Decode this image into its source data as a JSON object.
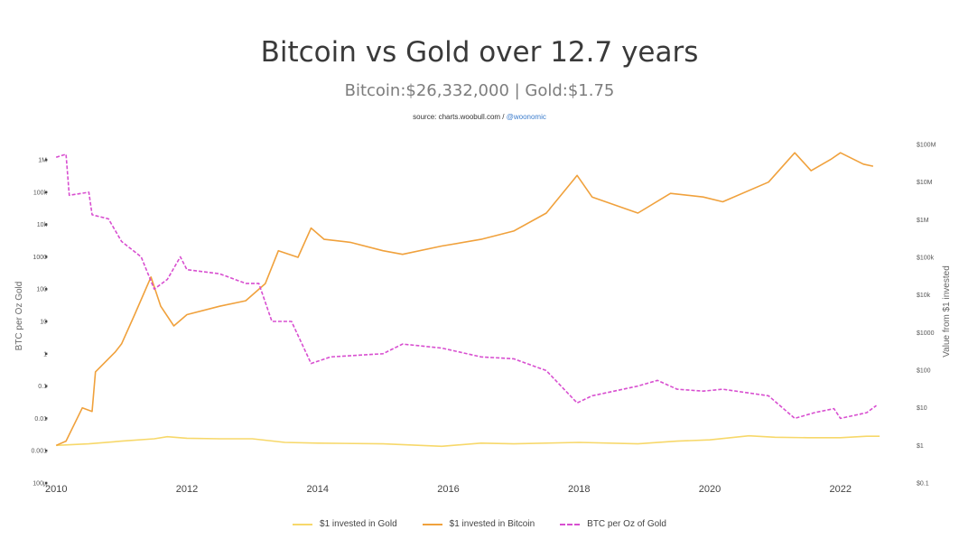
{
  "header": {
    "title": "Bitcoin vs Gold over 12.7 years",
    "subtitle": "Bitcoin:$26,332,000 | Gold:$1.75",
    "source_prefix": "source: charts.woobull.com / ",
    "source_handle": "@woonomic"
  },
  "colors": {
    "gold": "#f7d86a",
    "bitcoin": "#f0a13c",
    "ratio": "#d84fd0",
    "handle": "#3b7ccc"
  },
  "chart_data": {
    "type": "line",
    "title": "Bitcoin vs Gold over 12.7 years",
    "x_axis": {
      "type": "time",
      "range": [
        2009.9,
        2022.75
      ],
      "ticks": [
        "2010",
        "2012",
        "2014",
        "2016",
        "2018",
        "2020",
        "2022"
      ]
    },
    "y_left": {
      "label": "BTC per Oz Gold",
      "scale": "log",
      "ticks": [
        "100µ",
        "0.001",
        "0.01",
        "0.1",
        "1",
        "10",
        "100",
        "1000",
        "10k",
        "100k",
        "1M"
      ],
      "range": [
        0.0001,
        3000000
      ]
    },
    "y_right": {
      "label": "Value from $1 invested",
      "scale": "log",
      "ticks": [
        "$0.1",
        "$1",
        "$10",
        "$100",
        "$1000",
        "$10k",
        "$100k",
        "$1M",
        "$10M",
        "$100M"
      ],
      "range": [
        0.1,
        100000000
      ]
    },
    "grid": false,
    "legend_position": "bottom",
    "series": [
      {
        "name": "$1 invested in Gold",
        "axis": "right",
        "style": "solid",
        "x": [
          2010.0,
          2010.5,
          2011.0,
          2011.5,
          2011.7,
          2012.0,
          2012.5,
          2013.0,
          2013.5,
          2014.0,
          2015.0,
          2015.9,
          2016.5,
          2017.0,
          2018.0,
          2018.9,
          2019.5,
          2020.0,
          2020.6,
          2021.0,
          2021.5,
          2022.0,
          2022.4,
          2022.6
        ],
        "y": [
          1.0,
          1.1,
          1.3,
          1.5,
          1.7,
          1.55,
          1.5,
          1.5,
          1.2,
          1.15,
          1.1,
          0.95,
          1.15,
          1.1,
          1.2,
          1.1,
          1.3,
          1.4,
          1.8,
          1.65,
          1.6,
          1.6,
          1.75,
          1.75
        ]
      },
      {
        "name": "$1 invested in Bitcoin",
        "axis": "right",
        "style": "solid",
        "x": [
          2010.0,
          2010.15,
          2010.4,
          2010.55,
          2010.6,
          2010.9,
          2011.0,
          2011.2,
          2011.45,
          2011.6,
          2011.8,
          2012.0,
          2012.5,
          2012.9,
          2013.2,
          2013.4,
          2013.7,
          2013.9,
          2014.1,
          2014.5,
          2015.0,
          2015.3,
          2015.9,
          2016.5,
          2017.0,
          2017.5,
          2017.97,
          2018.2,
          2018.9,
          2019.4,
          2019.9,
          2020.2,
          2020.9,
          2021.3,
          2021.55,
          2021.85,
          2022.0,
          2022.35,
          2022.5
        ],
        "y": [
          1.0,
          1.3,
          10,
          8,
          90,
          300,
          500,
          3000,
          30000,
          5000,
          1500,
          3000,
          5000,
          7000,
          20000,
          150000,
          100000,
          600000,
          300000,
          250000,
          150000,
          120000,
          200000,
          300000,
          500000,
          1500000,
          15000000,
          4000000,
          1500000,
          5000000,
          4000000,
          3000000,
          10000000,
          60000000,
          20000000,
          40000000,
          60000000,
          30000000,
          26332000
        ]
      },
      {
        "name": "BTC per Oz of Gold",
        "axis": "left",
        "style": "dashed",
        "x": [
          2010.0,
          2010.15,
          2010.2,
          2010.5,
          2010.55,
          2010.8,
          2011.0,
          2011.3,
          2011.5,
          2011.7,
          2011.9,
          2012.0,
          2012.5,
          2012.9,
          2013.1,
          2013.3,
          2013.6,
          2013.9,
          2014.2,
          2015.0,
          2015.3,
          2015.9,
          2016.5,
          2017.0,
          2017.5,
          2017.97,
          2018.2,
          2018.9,
          2019.2,
          2019.5,
          2019.9,
          2020.2,
          2020.9,
          2021.3,
          2021.6,
          2021.9,
          2022.0,
          2022.4,
          2022.55
        ],
        "y": [
          1200000,
          1500000,
          80000,
          100000,
          20000,
          15000,
          3000,
          1000,
          100,
          200,
          1000,
          400,
          300,
          150,
          150,
          10,
          10,
          0.5,
          0.8,
          1.0,
          2.0,
          1.5,
          0.8,
          0.7,
          0.3,
          0.03,
          0.05,
          0.1,
          0.15,
          0.08,
          0.07,
          0.08,
          0.05,
          0.01,
          0.015,
          0.02,
          0.01,
          0.015,
          0.025
        ]
      }
    ]
  }
}
